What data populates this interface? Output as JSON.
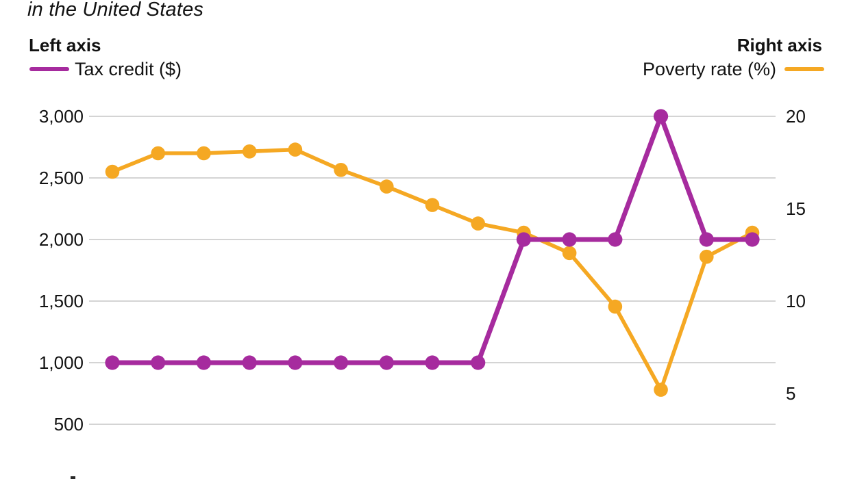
{
  "title": {
    "visible_line": "in the United States"
  },
  "axis_headers": {
    "left": "Left axis",
    "right": "Right axis"
  },
  "legend": {
    "left_label": "Tax credit ($)",
    "right_label": "Poverty rate (%)"
  },
  "colors": {
    "tax_credit": "#A62B9E",
    "poverty_rate": "#F5A823",
    "gridline": "#C6C6C6",
    "text": "#121212"
  },
  "chart_data": {
    "type": "line",
    "dual_axis": true,
    "title": "in the United States",
    "x_labels_visible": false,
    "n_points": 15,
    "grid": true,
    "legend_position": "top",
    "series": [
      {
        "name": "Tax credit ($)",
        "axis": "left",
        "color": "#A62B9E",
        "values": [
          1000,
          1000,
          1000,
          1000,
          1000,
          1000,
          1000,
          1000,
          1000,
          2000,
          2000,
          2000,
          3000,
          2000,
          2000
        ]
      },
      {
        "name": "Poverty rate (%)",
        "axis": "right",
        "color": "#F5A823",
        "values": [
          17.0,
          18.0,
          18.0,
          18.1,
          18.2,
          17.1,
          16.2,
          15.2,
          14.2,
          13.7,
          12.6,
          9.7,
          5.2,
          12.4,
          13.7
        ]
      }
    ],
    "left_axis": {
      "label_in_legend": "Tax credit ($)",
      "tick_labels": [
        "3,000",
        "2,500",
        "2,000",
        "1,500",
        "1,000",
        "500"
      ],
      "tick_values": [
        3000,
        2500,
        2000,
        1500,
        1000,
        500
      ],
      "range_shown": [
        500,
        3000
      ]
    },
    "right_axis": {
      "label_in_legend": "Poverty rate (%)",
      "tick_labels": [
        "20",
        "15",
        "10",
        "5"
      ],
      "tick_values": [
        20,
        15,
        10,
        5
      ],
      "range_shown": [
        3.33,
        20
      ]
    },
    "gridlines_at_left_values": [
      3000,
      2500,
      2000,
      1500,
      1000,
      500
    ]
  }
}
